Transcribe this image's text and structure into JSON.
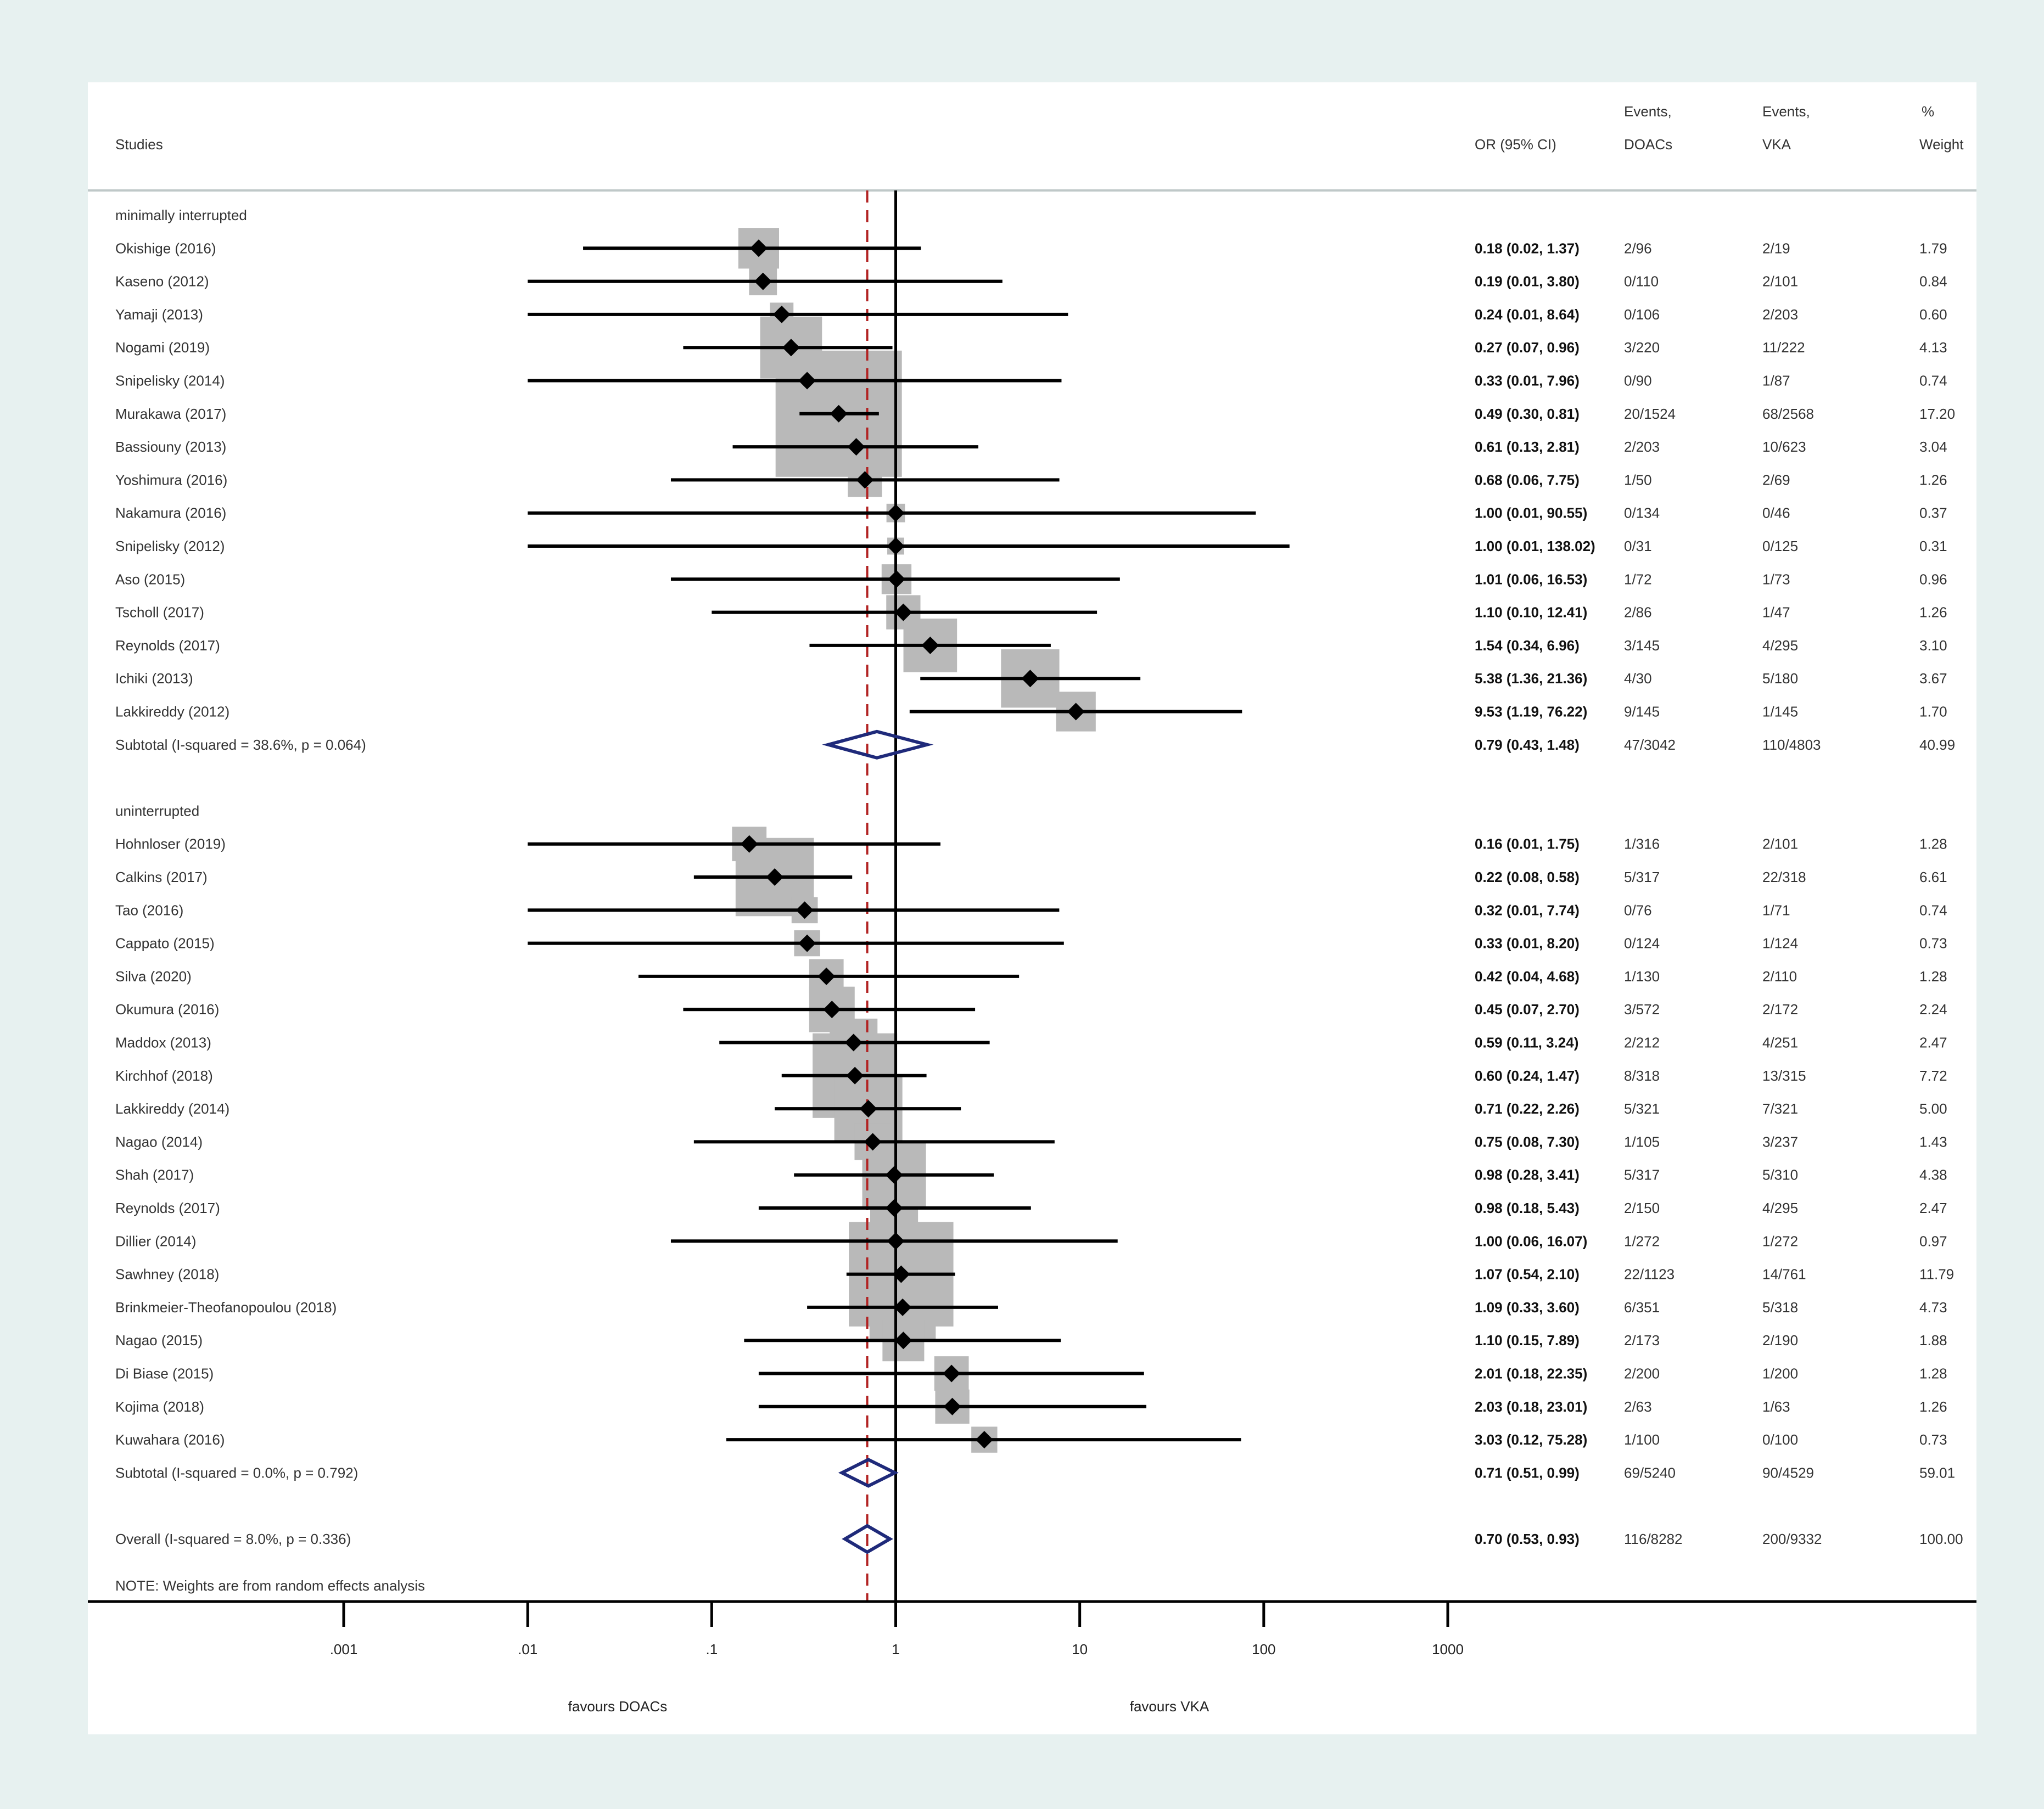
{
  "chart_data": {
    "type": "forest",
    "headers": {
      "studies": "Studies",
      "or": "OR (95% CI)",
      "ev_doac": [
        "Events,",
        "DOACs"
      ],
      "ev_vka": [
        "Events,",
        "VKA"
      ],
      "weight": [
        "%",
        "Weight"
      ]
    },
    "x_scale": "log",
    "xlim": [
      0.001,
      1000
    ],
    "x_ticks": [
      ".001",
      ".01",
      ".1",
      "1",
      "10",
      "100",
      "1000"
    ],
    "null_line": 1,
    "overall_line": 0.7,
    "favours_left": "favours DOACs",
    "favours_right": "favours VKA",
    "note": "NOTE: Weights are from random effects analysis",
    "groups": [
      {
        "name": "minimally interrupted",
        "studies": [
          {
            "study": "Okishige (2016)",
            "or": 0.18,
            "lo": 0.02,
            "hi": 1.37,
            "ci": "0.18 (0.02, 1.37)",
            "ev_doac": "2/96",
            "ev_vka": "2/19",
            "weight": "1.79"
          },
          {
            "study": "Kaseno (2012)",
            "or": 0.19,
            "lo": 0.01,
            "hi": 3.8,
            "ci": "0.19 (0.01, 3.80)",
            "ev_doac": "0/110",
            "ev_vka": "2/101",
            "weight": "0.84"
          },
          {
            "study": "Yamaji (2013)",
            "or": 0.24,
            "lo": 0.01,
            "hi": 8.64,
            "ci": "0.24 (0.01, 8.64)",
            "ev_doac": "0/106",
            "ev_vka": "2/203",
            "weight": "0.60"
          },
          {
            "study": "Nogami (2019)",
            "or": 0.27,
            "lo": 0.07,
            "hi": 0.96,
            "ci": "0.27 (0.07, 0.96)",
            "ev_doac": "3/220",
            "ev_vka": "11/222",
            "weight": "4.13"
          },
          {
            "study": "Snipelisky (2014)",
            "or": 0.33,
            "lo": 0.01,
            "hi": 7.96,
            "ci": "0.33 (0.01, 7.96)",
            "ev_doac": "0/90",
            "ev_vka": "1/87",
            "weight": "0.74"
          },
          {
            "study": "Murakawa (2017)",
            "or": 0.49,
            "lo": 0.3,
            "hi": 0.81,
            "ci": "0.49 (0.30, 0.81)",
            "ev_doac": "20/1524",
            "ev_vka": "68/2568",
            "weight": "17.20"
          },
          {
            "study": "Bassiouny (2013)",
            "or": 0.61,
            "lo": 0.13,
            "hi": 2.81,
            "ci": "0.61 (0.13, 2.81)",
            "ev_doac": "2/203",
            "ev_vka": "10/623",
            "weight": "3.04"
          },
          {
            "study": "Yoshimura (2016)",
            "or": 0.68,
            "lo": 0.06,
            "hi": 7.75,
            "ci": "0.68 (0.06, 7.75)",
            "ev_doac": "1/50",
            "ev_vka": "2/69",
            "weight": "1.26"
          },
          {
            "study": "Nakamura (2016)",
            "or": 1.0,
            "lo": 0.01,
            "hi": 90.55,
            "ci": "1.00 (0.01, 90.55)",
            "ev_doac": "0/134",
            "ev_vka": "0/46",
            "weight": "0.37"
          },
          {
            "study": "Snipelisky (2012)",
            "or": 1.0,
            "lo": 0.01,
            "hi": 138.02,
            "ci": "1.00 (0.01, 138.02)",
            "ev_doac": "0/31",
            "ev_vka": "0/125",
            "weight": "0.31"
          },
          {
            "study": "Aso (2015)",
            "or": 1.01,
            "lo": 0.06,
            "hi": 16.53,
            "ci": "1.01 (0.06, 16.53)",
            "ev_doac": "1/72",
            "ev_vka": "1/73",
            "weight": "0.96"
          },
          {
            "study": "Tscholl (2017)",
            "or": 1.1,
            "lo": 0.1,
            "hi": 12.41,
            "ci": "1.10 (0.10, 12.41)",
            "ev_doac": "2/86",
            "ev_vka": "1/47",
            "weight": "1.26"
          },
          {
            "study": "Reynolds (2017)",
            "or": 1.54,
            "lo": 0.34,
            "hi": 6.96,
            "ci": "1.54 (0.34, 6.96)",
            "ev_doac": "3/145",
            "ev_vka": "4/295",
            "weight": "3.10"
          },
          {
            "study": "Ichiki (2013)",
            "or": 5.38,
            "lo": 1.36,
            "hi": 21.36,
            "ci": "5.38 (1.36, 21.36)",
            "ev_doac": "4/30",
            "ev_vka": "5/180",
            "weight": "3.67"
          },
          {
            "study": "Lakkireddy (2012)",
            "or": 9.53,
            "lo": 1.19,
            "hi": 76.22,
            "ci": "9.53 (1.19, 76.22)",
            "ev_doac": "9/145",
            "ev_vka": "1/145",
            "weight": "1.70"
          }
        ],
        "subtotal": {
          "label": "Subtotal  (I-squared = 38.6%, p = 0.064)",
          "or": 0.79,
          "lo": 0.43,
          "hi": 1.48,
          "ci": "0.79 (0.43, 1.48)",
          "ev_doac": "47/3042",
          "ev_vka": "110/4803",
          "weight": "40.99"
        }
      },
      {
        "name": "uninterrupted",
        "studies": [
          {
            "study": "Hohnloser (2019)",
            "or": 0.16,
            "lo": 0.01,
            "hi": 1.75,
            "ci": "0.16 (0.01, 1.75)",
            "ev_doac": "1/316",
            "ev_vka": "2/101",
            "weight": "1.28"
          },
          {
            "study": "Calkins (2017)",
            "or": 0.22,
            "lo": 0.08,
            "hi": 0.58,
            "ci": "0.22 (0.08, 0.58)",
            "ev_doac": "5/317",
            "ev_vka": "22/318",
            "weight": "6.61"
          },
          {
            "study": "Tao (2016)",
            "or": 0.32,
            "lo": 0.01,
            "hi": 7.74,
            "ci": "0.32 (0.01, 7.74)",
            "ev_doac": "0/76",
            "ev_vka": "1/71",
            "weight": "0.74"
          },
          {
            "study": "Cappato (2015)",
            "or": 0.33,
            "lo": 0.01,
            "hi": 8.2,
            "ci": "0.33 (0.01, 8.20)",
            "ev_doac": "0/124",
            "ev_vka": "1/124",
            "weight": "0.73"
          },
          {
            "study": "Silva (2020)",
            "or": 0.42,
            "lo": 0.04,
            "hi": 4.68,
            "ci": "0.42 (0.04, 4.68)",
            "ev_doac": "1/130",
            "ev_vka": "2/110",
            "weight": "1.28"
          },
          {
            "study": "Okumura (2016)",
            "or": 0.45,
            "lo": 0.07,
            "hi": 2.7,
            "ci": "0.45 (0.07, 2.70)",
            "ev_doac": "3/572",
            "ev_vka": "2/172",
            "weight": "2.24"
          },
          {
            "study": "Maddox (2013)",
            "or": 0.59,
            "lo": 0.11,
            "hi": 3.24,
            "ci": "0.59 (0.11, 3.24)",
            "ev_doac": "2/212",
            "ev_vka": "4/251",
            "weight": "2.47"
          },
          {
            "study": "Kirchhof (2018)",
            "or": 0.6,
            "lo": 0.24,
            "hi": 1.47,
            "ci": "0.60 (0.24, 1.47)",
            "ev_doac": "8/318",
            "ev_vka": "13/315",
            "weight": "7.72"
          },
          {
            "study": "Lakkireddy (2014)",
            "or": 0.71,
            "lo": 0.22,
            "hi": 2.26,
            "ci": "0.71 (0.22, 2.26)",
            "ev_doac": "5/321",
            "ev_vka": "7/321",
            "weight": "5.00"
          },
          {
            "study": "Nagao (2014)",
            "or": 0.75,
            "lo": 0.08,
            "hi": 7.3,
            "ci": "0.75 (0.08, 7.30)",
            "ev_doac": "1/105",
            "ev_vka": "3/237",
            "weight": "1.43"
          },
          {
            "study": "Shah (2017)",
            "or": 0.98,
            "lo": 0.28,
            "hi": 3.41,
            "ci": "0.98 (0.28, 3.41)",
            "ev_doac": "5/317",
            "ev_vka": "5/310",
            "weight": "4.38"
          },
          {
            "study": "Reynolds (2017)",
            "or": 0.98,
            "lo": 0.18,
            "hi": 5.43,
            "ci": "0.98 (0.18, 5.43)",
            "ev_doac": "2/150",
            "ev_vka": "4/295",
            "weight": "2.47"
          },
          {
            "study": "Dillier (2014)",
            "or": 1.0,
            "lo": 0.06,
            "hi": 16.07,
            "ci": "1.00 (0.06, 16.07)",
            "ev_doac": "1/272",
            "ev_vka": "1/272",
            "weight": "0.97"
          },
          {
            "study": "Sawhney (2018)",
            "or": 1.07,
            "lo": 0.54,
            "hi": 2.1,
            "ci": "1.07 (0.54, 2.10)",
            "ev_doac": "22/1123",
            "ev_vka": "14/761",
            "weight": "11.79"
          },
          {
            "study": "Brinkmeier-Theofanopoulou (2018)",
            "or": 1.09,
            "lo": 0.33,
            "hi": 3.6,
            "ci": "1.09 (0.33, 3.60)",
            "ev_doac": "6/351",
            "ev_vka": "5/318",
            "weight": "4.73"
          },
          {
            "study": "Nagao (2015)",
            "or": 1.1,
            "lo": 0.15,
            "hi": 7.89,
            "ci": "1.10 (0.15, 7.89)",
            "ev_doac": "2/173",
            "ev_vka": "2/190",
            "weight": "1.88"
          },
          {
            "study": "Di Biase (2015)",
            "or": 2.01,
            "lo": 0.18,
            "hi": 22.35,
            "ci": "2.01 (0.18, 22.35)",
            "ev_doac": "2/200",
            "ev_vka": "1/200",
            "weight": "1.28"
          },
          {
            "study": "Kojima (2018)",
            "or": 2.03,
            "lo": 0.18,
            "hi": 23.01,
            "ci": "2.03 (0.18, 23.01)",
            "ev_doac": "2/63",
            "ev_vka": "1/63",
            "weight": "1.26"
          },
          {
            "study": "Kuwahara (2016)",
            "or": 3.03,
            "lo": 0.12,
            "hi": 75.28,
            "ci": "3.03 (0.12, 75.28)",
            "ev_doac": "1/100",
            "ev_vka": "0/100",
            "weight": "0.73"
          }
        ],
        "subtotal": {
          "label": "Subtotal  (I-squared = 0.0%, p = 0.792)",
          "or": 0.71,
          "lo": 0.51,
          "hi": 0.99,
          "ci": "0.71 (0.51, 0.99)",
          "ev_doac": "69/5240",
          "ev_vka": "90/4529",
          "weight": "59.01"
        }
      }
    ],
    "overall": {
      "label": "Overall  (I-squared = 8.0%, p = 0.336)",
      "or": 0.7,
      "lo": 0.53,
      "hi": 0.93,
      "ci": "0.70 (0.53, 0.93)",
      "ev_doac": "116/8282",
      "ev_vka": "200/9332",
      "weight": "100.00"
    },
    "colors": {
      "background": "#e7f1f0",
      "panel": "#ffffff",
      "weight_box": "#b9b9b9",
      "diamond": "#1f2a7a",
      "overall_line": "#b22222",
      "line": "#000000"
    }
  }
}
